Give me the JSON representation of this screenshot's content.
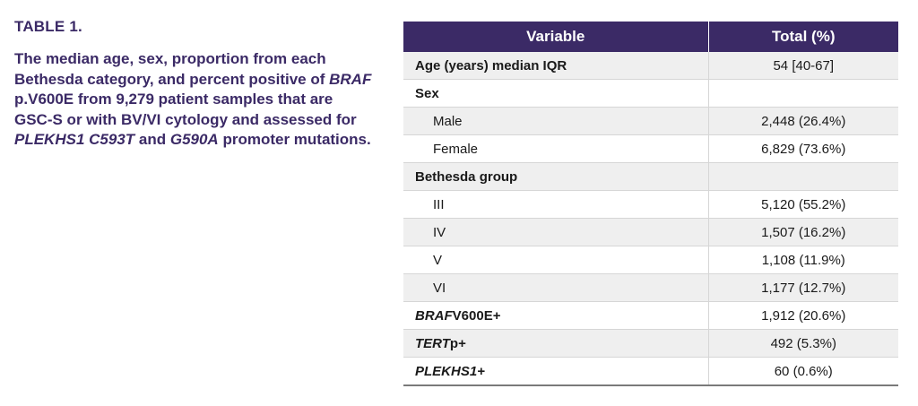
{
  "caption": {
    "label": "TABLE 1.",
    "text_parts": {
      "p1": "The median age, sex, proportion from each Bethesda category, and percent positive of ",
      "p2": "BRAF",
      "p3": " p.V600E from 9,279 patient samples that are GSC-S or with BV/VI cytology and assessed for ",
      "p4": "PLEKHS1 C593T",
      "p5": " and ",
      "p6": "G590A",
      "p7": " promoter mutations."
    }
  },
  "table": {
    "headers": {
      "variable": "Variable",
      "total": "Total (%)"
    },
    "rows": [
      {
        "label": "Age (years) median IQR",
        "value": "54 [40-67]"
      },
      {
        "label": "Sex",
        "value": ""
      },
      {
        "label": "Male",
        "value": "2,448 (26.4%)"
      },
      {
        "label": "Female",
        "value": "6,829 (73.6%)"
      },
      {
        "label": "Bethesda group",
        "value": ""
      },
      {
        "label": "III",
        "value": "5,120 (55.2%)"
      },
      {
        "label": "IV",
        "value": "1,507 (16.2%)"
      },
      {
        "label": "V",
        "value": "1,108 (11.9%)"
      },
      {
        "label": "VI",
        "value": "1,177 (12.7%)"
      },
      {
        "label_italic": "BRAF",
        "label_rest": "V600E+",
        "value": "1,912 (20.6%)"
      },
      {
        "label_italic": "TERT",
        "label_rest": "p+",
        "value": "492 (5.3%)"
      },
      {
        "label_italic": "PLEKHS1+",
        "label_rest": "",
        "value": "60 (0.6%)"
      }
    ]
  },
  "colors": {
    "accent": "#3b2a66",
    "row_alt": "#efefef"
  }
}
